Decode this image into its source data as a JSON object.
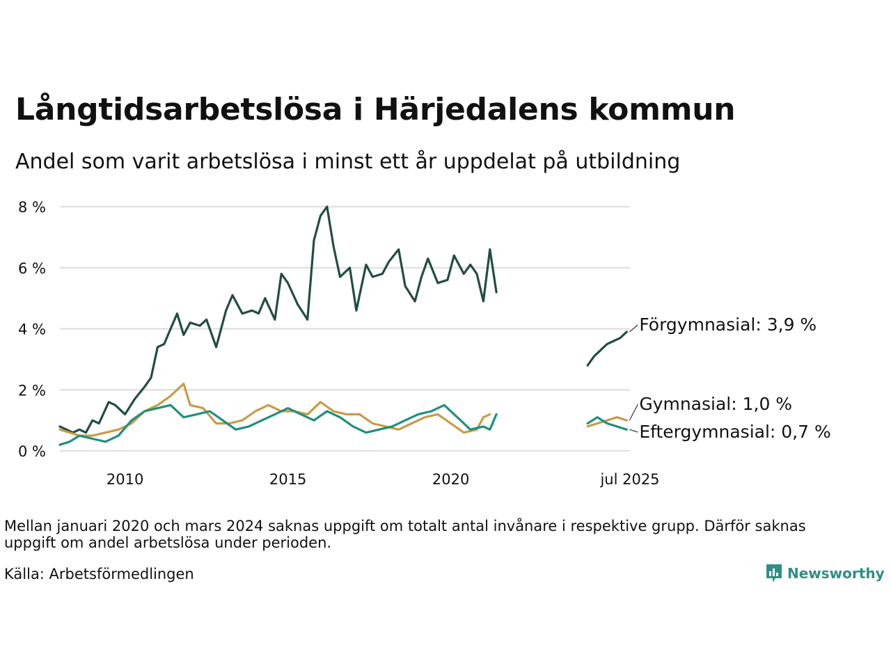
{
  "title": "Långtidsarbetslösa i Härjedalens kommun",
  "subtitle": "Andel som varit arbetslösa i minst ett år uppdelat på utbildning",
  "note": "Mellan januari 2020 och mars 2024 saknas uppgift om totalt antal invånare i respektive grupp. Därför saknas uppgift om andel arbetslösa under perioden.",
  "source": "Källa: Arbetsförmedlingen",
  "brand": "Newsworthy",
  "chart_data": {
    "type": "line",
    "title": "Långtidsarbetslösa i Härjedalens kommun",
    "subtitle": "Andel som varit arbetslösa i minst ett år uppdelat på utbildning",
    "ylim": [
      0,
      8
    ],
    "y_ticks": [
      0,
      2,
      4,
      6,
      8
    ],
    "y_tick_labels": [
      "0 %",
      "2 %",
      "4 %",
      "6 %",
      "8 %"
    ],
    "x_axis": "time (decimal year)",
    "xlim": [
      2008.0,
      2025.5
    ],
    "x_ticks": [
      2010,
      2015,
      2020,
      2025.5
    ],
    "x_tick_labels": [
      "2010",
      "2015",
      "2020",
      "jul 2025"
    ],
    "grid": true,
    "legend": "direct labels at line ends",
    "series": [
      {
        "name": "Förgymnasial",
        "end_label": "Förgymnasial: 3,9 %",
        "color": "#214d43",
        "segments": [
          [
            [
              2008.0,
              0.8
            ],
            [
              2008.2,
              0.7
            ],
            [
              2008.4,
              0.6
            ],
            [
              2008.6,
              0.7
            ],
            [
              2008.8,
              0.6
            ],
            [
              2009.0,
              1.0
            ],
            [
              2009.2,
              0.9
            ],
            [
              2009.5,
              1.6
            ],
            [
              2009.7,
              1.5
            ],
            [
              2010.0,
              1.2
            ],
            [
              2010.3,
              1.7
            ],
            [
              2010.6,
              2.1
            ],
            [
              2010.8,
              2.4
            ],
            [
              2011.0,
              3.4
            ],
            [
              2011.2,
              3.5
            ],
            [
              2011.4,
              4.0
            ],
            [
              2011.6,
              4.5
            ],
            [
              2011.8,
              3.8
            ],
            [
              2012.0,
              4.2
            ],
            [
              2012.3,
              4.1
            ],
            [
              2012.5,
              4.3
            ],
            [
              2012.8,
              3.4
            ],
            [
              2013.1,
              4.6
            ],
            [
              2013.3,
              5.1
            ],
            [
              2013.6,
              4.5
            ],
            [
              2013.9,
              4.6
            ],
            [
              2014.1,
              4.5
            ],
            [
              2014.3,
              5.0
            ],
            [
              2014.6,
              4.3
            ],
            [
              2014.8,
              5.8
            ],
            [
              2015.0,
              5.5
            ],
            [
              2015.3,
              4.8
            ],
            [
              2015.6,
              4.3
            ],
            [
              2015.8,
              6.9
            ],
            [
              2016.0,
              7.7
            ],
            [
              2016.2,
              8.0
            ],
            [
              2016.4,
              6.7
            ],
            [
              2016.6,
              5.7
            ],
            [
              2016.9,
              6.0
            ],
            [
              2017.1,
              4.6
            ],
            [
              2017.4,
              6.1
            ],
            [
              2017.6,
              5.7
            ],
            [
              2017.9,
              5.8
            ],
            [
              2018.1,
              6.2
            ],
            [
              2018.4,
              6.6
            ],
            [
              2018.6,
              5.4
            ],
            [
              2018.9,
              4.9
            ],
            [
              2019.1,
              5.7
            ],
            [
              2019.3,
              6.3
            ],
            [
              2019.6,
              5.5
            ],
            [
              2019.9,
              5.6
            ],
            [
              2020.1,
              6.4
            ],
            [
              2020.4,
              5.8
            ],
            [
              2020.6,
              6.1
            ],
            [
              2020.8,
              5.8
            ],
            [
              2021.0,
              4.9
            ],
            [
              2021.2,
              6.6
            ],
            [
              2021.4,
              5.2
            ]
          ],
          [
            [
              2024.2,
              2.8
            ],
            [
              2024.4,
              3.1
            ],
            [
              2024.6,
              3.3
            ],
            [
              2024.8,
              3.5
            ],
            [
              2025.0,
              3.6
            ],
            [
              2025.2,
              3.7
            ],
            [
              2025.4,
              3.9
            ]
          ]
        ]
      },
      {
        "name": "Gymnasial",
        "end_label": "Gymnasial: 1,0 %",
        "color": "#c89b46",
        "segments": [
          [
            [
              2008.0,
              0.7
            ],
            [
              2008.3,
              0.6
            ],
            [
              2008.6,
              0.5
            ],
            [
              2009.0,
              0.5
            ],
            [
              2009.4,
              0.6
            ],
            [
              2009.8,
              0.7
            ],
            [
              2010.2,
              0.9
            ],
            [
              2010.6,
              1.3
            ],
            [
              2011.0,
              1.5
            ],
            [
              2011.4,
              1.8
            ],
            [
              2011.8,
              2.2
            ],
            [
              2012.0,
              1.5
            ],
            [
              2012.4,
              1.4
            ],
            [
              2012.8,
              0.9
            ],
            [
              2013.2,
              0.9
            ],
            [
              2013.6,
              1.0
            ],
            [
              2014.0,
              1.3
            ],
            [
              2014.4,
              1.5
            ],
            [
              2014.8,
              1.3
            ],
            [
              2015.2,
              1.3
            ],
            [
              2015.6,
              1.2
            ],
            [
              2016.0,
              1.6
            ],
            [
              2016.4,
              1.3
            ],
            [
              2016.8,
              1.2
            ],
            [
              2017.2,
              1.2
            ],
            [
              2017.6,
              0.9
            ],
            [
              2018.0,
              0.8
            ],
            [
              2018.4,
              0.7
            ],
            [
              2018.8,
              0.9
            ],
            [
              2019.2,
              1.1
            ],
            [
              2019.6,
              1.2
            ],
            [
              2020.0,
              0.9
            ],
            [
              2020.4,
              0.6
            ],
            [
              2020.8,
              0.7
            ],
            [
              2021.0,
              1.1
            ],
            [
              2021.2,
              1.2
            ]
          ],
          [
            [
              2024.2,
              0.8
            ],
            [
              2024.5,
              0.9
            ],
            [
              2024.8,
              1.0
            ],
            [
              2025.1,
              1.1
            ],
            [
              2025.4,
              1.0
            ]
          ]
        ]
      },
      {
        "name": "Eftergymnasial",
        "end_label": "Eftergymnasial: 0,7 %",
        "color": "#1e8f7e",
        "segments": [
          [
            [
              2008.0,
              0.2
            ],
            [
              2008.3,
              0.3
            ],
            [
              2008.6,
              0.5
            ],
            [
              2009.0,
              0.4
            ],
            [
              2009.4,
              0.3
            ],
            [
              2009.8,
              0.5
            ],
            [
              2010.2,
              1.0
            ],
            [
              2010.6,
              1.3
            ],
            [
              2011.0,
              1.4
            ],
            [
              2011.4,
              1.5
            ],
            [
              2011.8,
              1.1
            ],
            [
              2012.2,
              1.2
            ],
            [
              2012.6,
              1.3
            ],
            [
              2013.0,
              1.0
            ],
            [
              2013.4,
              0.7
            ],
            [
              2013.8,
              0.8
            ],
            [
              2014.2,
              1.0
            ],
            [
              2014.6,
              1.2
            ],
            [
              2015.0,
              1.4
            ],
            [
              2015.4,
              1.2
            ],
            [
              2015.8,
              1.0
            ],
            [
              2016.2,
              1.3
            ],
            [
              2016.6,
              1.1
            ],
            [
              2017.0,
              0.8
            ],
            [
              2017.4,
              0.6
            ],
            [
              2017.8,
              0.7
            ],
            [
              2018.2,
              0.8
            ],
            [
              2018.6,
              1.0
            ],
            [
              2019.0,
              1.2
            ],
            [
              2019.4,
              1.3
            ],
            [
              2019.8,
              1.5
            ],
            [
              2020.2,
              1.1
            ],
            [
              2020.6,
              0.7
            ],
            [
              2021.0,
              0.8
            ],
            [
              2021.2,
              0.7
            ],
            [
              2021.4,
              1.2
            ]
          ],
          [
            [
              2024.2,
              0.9
            ],
            [
              2024.5,
              1.1
            ],
            [
              2024.8,
              0.9
            ],
            [
              2025.1,
              0.8
            ],
            [
              2025.4,
              0.7
            ]
          ]
        ]
      }
    ]
  }
}
